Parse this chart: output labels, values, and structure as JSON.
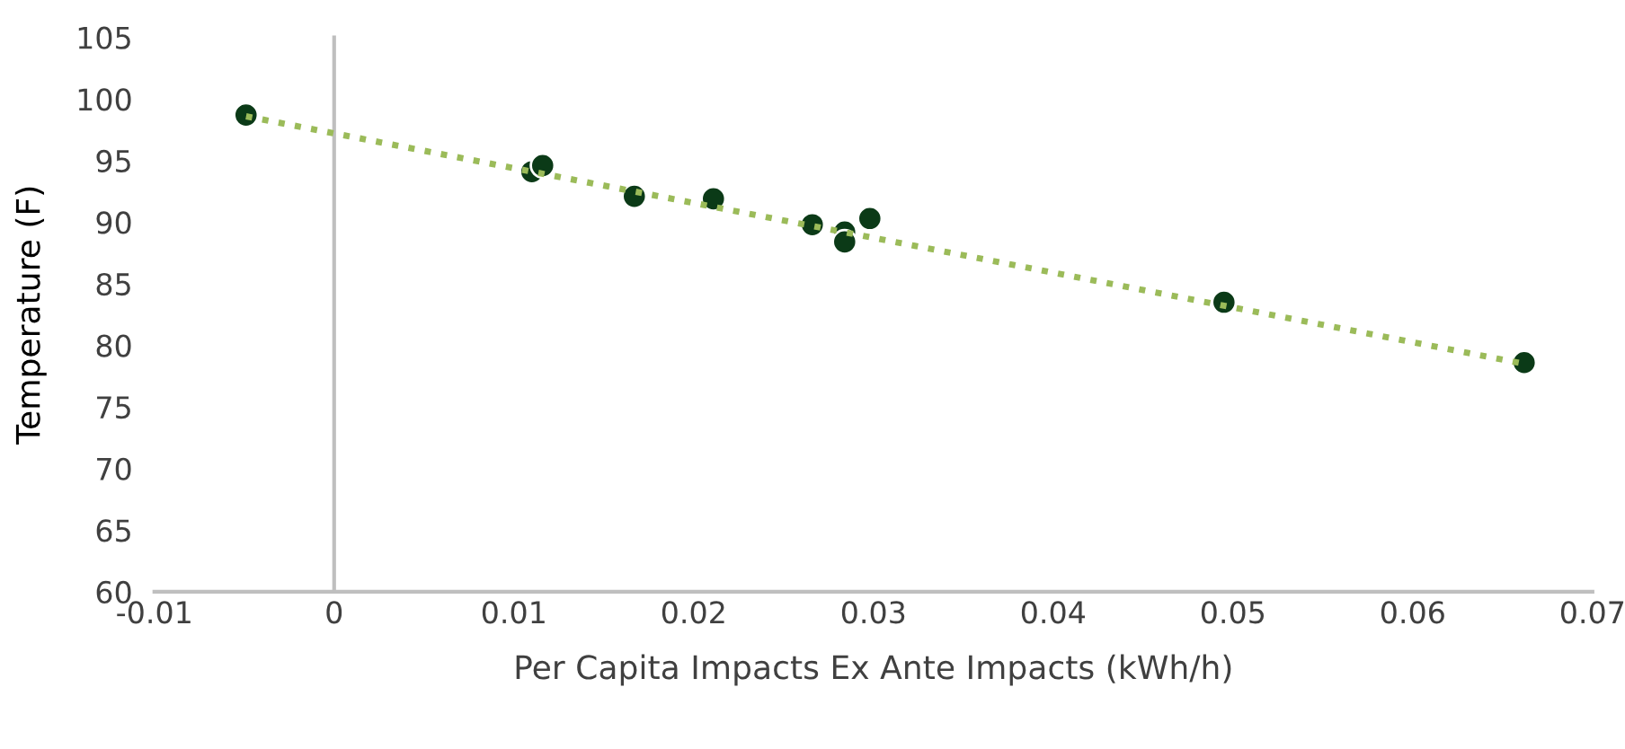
{
  "chart_data": {
    "type": "scatter",
    "xlabel": "Per Capita Impacts Ex Ante Impacts (kWh/h)",
    "ylabel": "Temperature (F)",
    "xlim": [
      -0.01,
      0.07
    ],
    "ylim": [
      60,
      105
    ],
    "xticks": [
      -0.01,
      0,
      0.01,
      0.02,
      0.03,
      0.04,
      0.05,
      0.06,
      0.07
    ],
    "yticks": [
      60,
      65,
      70,
      75,
      80,
      85,
      90,
      95,
      100,
      105
    ],
    "legend": false,
    "series": [
      {
        "color": "#0b3a17",
        "marker": "circle",
        "x": [
          -0.0049,
          0.011,
          0.0116,
          0.0167,
          0.0211,
          0.0266,
          0.0284,
          0.0284,
          0.0298,
          0.0495,
          0.0662
        ],
        "values": [
          98.7,
          94.1,
          94.6,
          92.1,
          91.9,
          89.8,
          89.2,
          88.4,
          90.3,
          83.5,
          78.6
        ]
      },
      {
        "type": "line",
        "color": "#9bbb59",
        "line_style": "dotted",
        "marker": "none",
        "x": [
          -0.0049,
          0.0662
        ],
        "values": [
          98.6,
          78.5
        ]
      }
    ]
  }
}
